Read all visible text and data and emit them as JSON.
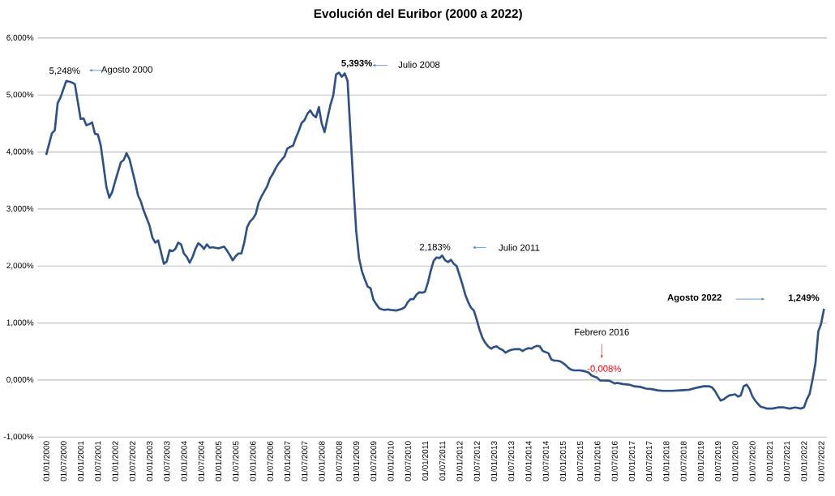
{
  "chart_data": {
    "type": "line",
    "title": "Evolución del Euribor (2000 a 2022)",
    "xlim": [
      "1999-10",
      "2022-09"
    ],
    "ylim": [
      -1,
      6
    ],
    "xticks": [
      {
        "value": "2000-01",
        "label": "01/01/2000"
      },
      {
        "value": "2000-07",
        "label": "01/07/2000"
      },
      {
        "value": "2001-01",
        "label": "01/01/2001"
      },
      {
        "value": "2001-07",
        "label": "01/07/2001"
      },
      {
        "value": "2002-01",
        "label": "01/01/2002"
      },
      {
        "value": "2002-07",
        "label": "01/07/2002"
      },
      {
        "value": "2003-01",
        "label": "01/01/2003"
      },
      {
        "value": "2003-07",
        "label": "01/07/2003"
      },
      {
        "value": "2004-01",
        "label": "01/01/2004"
      },
      {
        "value": "2004-07",
        "label": "01/07/2004"
      },
      {
        "value": "2005-01",
        "label": "01/01/2005"
      },
      {
        "value": "2005-07",
        "label": "01/07/2005"
      },
      {
        "value": "2006-01",
        "label": "01/01/2006"
      },
      {
        "value": "2006-07",
        "label": "01/07/2006"
      },
      {
        "value": "2007-01",
        "label": "01/01/2007"
      },
      {
        "value": "2007-07",
        "label": "01/07/2007"
      },
      {
        "value": "2008-01",
        "label": "01/01/2008"
      },
      {
        "value": "2008-07",
        "label": "01/07/2008"
      },
      {
        "value": "2009-01",
        "label": "01/01/2009"
      },
      {
        "value": "2009-07",
        "label": "01/07/2009"
      },
      {
        "value": "2010-01",
        "label": "01/01/2010"
      },
      {
        "value": "2010-07",
        "label": "01/07/2010"
      },
      {
        "value": "2011-01",
        "label": "01/01/2011"
      },
      {
        "value": "2011-07",
        "label": "01/07/2011"
      },
      {
        "value": "2012-01",
        "label": "01/01/2012"
      },
      {
        "value": "2012-07",
        "label": "01/07/2012"
      },
      {
        "value": "2013-01",
        "label": "01/01/2013"
      },
      {
        "value": "2013-07",
        "label": "01/07/2013"
      },
      {
        "value": "2014-01",
        "label": "01/01/2014"
      },
      {
        "value": "2014-07",
        "label": "01/07/2014"
      },
      {
        "value": "2015-01",
        "label": "01/01/2015"
      },
      {
        "value": "2015-07",
        "label": "01/07/2015"
      },
      {
        "value": "2016-01",
        "label": "01/01/2016"
      },
      {
        "value": "2016-07",
        "label": "01/07/2016"
      },
      {
        "value": "2017-01",
        "label": "01/01/2017"
      },
      {
        "value": "2017-07",
        "label": "01/07/2017"
      },
      {
        "value": "2018-01",
        "label": "01/01/2018"
      },
      {
        "value": "2018-07",
        "label": "01/07/2018"
      },
      {
        "value": "2019-01",
        "label": "01/01/2019"
      },
      {
        "value": "2019-07",
        "label": "01/07/2019"
      },
      {
        "value": "2020-01",
        "label": "01/01/2020"
      },
      {
        "value": "2020-07",
        "label": "01/07/2020"
      },
      {
        "value": "2021-01",
        "label": "01/01/2021"
      },
      {
        "value": "2021-07",
        "label": "01/07/2021"
      },
      {
        "value": "2022-01",
        "label": "01/01/2022"
      },
      {
        "value": "2022-07",
        "label": "01/07/2022"
      }
    ],
    "yticks": [
      {
        "value": -1,
        "label": "-1,000%"
      },
      {
        "value": 0,
        "label": "0,000%"
      },
      {
        "value": 1,
        "label": "1,000%"
      },
      {
        "value": 2,
        "label": "2,000%"
      },
      {
        "value": 3,
        "label": "3,000%"
      },
      {
        "value": 4,
        "label": "4,000%"
      },
      {
        "value": 5,
        "label": "5,000%"
      },
      {
        "value": 6,
        "label": "6,000%"
      }
    ],
    "grid": "y",
    "series": [
      {
        "color": "#2e5288",
        "x": [
          "2000-01",
          "2000-03",
          "2000-04",
          "2000-05",
          "2000-06",
          "2000-08",
          "2000-10",
          "2000-11",
          "2001-01",
          "2001-02",
          "2001-03",
          "2001-04",
          "2001-05",
          "2001-06",
          "2001-07",
          "2001-08",
          "2001-10",
          "2001-11",
          "2001-12",
          "2002-01",
          "2002-03",
          "2002-04",
          "2002-05",
          "2002-06",
          "2002-08",
          "2002-09",
          "2002-10",
          "2002-11",
          "2003-01",
          "2003-02",
          "2003-03",
          "2003-04",
          "2003-06",
          "2003-07",
          "2003-08",
          "2003-09",
          "2003-10",
          "2003-11",
          "2003-12",
          "2004-01",
          "2004-02",
          "2004-03",
          "2004-04",
          "2004-05",
          "2004-06",
          "2004-07",
          "2004-08",
          "2004-09",
          "2004-10",
          "2004-11",
          "2005-01",
          "2005-03",
          "2005-04",
          "2005-05",
          "2005-06",
          "2005-07",
          "2005-08",
          "2005-09",
          "2005-10",
          "2005-11",
          "2005-12",
          "2006-01",
          "2006-02",
          "2006-03",
          "2006-04",
          "2006-05",
          "2006-06",
          "2006-07",
          "2006-08",
          "2006-09",
          "2006-10",
          "2006-11",
          "2006-12",
          "2007-01",
          "2007-02",
          "2007-03",
          "2007-04",
          "2007-05",
          "2007-06",
          "2007-07",
          "2007-08",
          "2007-09",
          "2007-10",
          "2007-11",
          "2007-12",
          "2008-01",
          "2008-02",
          "2008-03",
          "2008-04",
          "2008-05",
          "2008-06",
          "2008-07",
          "2008-08",
          "2008-09",
          "2008-10",
          "2008-11",
          "2008-12",
          "2009-01",
          "2009-02",
          "2009-03",
          "2009-04",
          "2009-05",
          "2009-06",
          "2009-07",
          "2009-08",
          "2009-09",
          "2009-10",
          "2009-11",
          "2009-12",
          "2010-01",
          "2010-03",
          "2010-05",
          "2010-06",
          "2010-07",
          "2010-08",
          "2010-09",
          "2010-10",
          "2010-11",
          "2010-12",
          "2011-01",
          "2011-02",
          "2011-03",
          "2011-04",
          "2011-05",
          "2011-06",
          "2011-07",
          "2011-08",
          "2011-09",
          "2011-10",
          "2011-11",
          "2011-12",
          "2012-01",
          "2012-02",
          "2012-03",
          "2012-04",
          "2012-05",
          "2012-06",
          "2012-07",
          "2012-08",
          "2012-09",
          "2012-10",
          "2012-11",
          "2012-12",
          "2013-01",
          "2013-02",
          "2013-03",
          "2013-04",
          "2013-05",
          "2013-06",
          "2013-07",
          "2013-08",
          "2013-09",
          "2013-10",
          "2013-11",
          "2013-12",
          "2014-01",
          "2014-02",
          "2014-03",
          "2014-04",
          "2014-05",
          "2014-06",
          "2014-07",
          "2014-08",
          "2014-09",
          "2014-10",
          "2014-11",
          "2014-12",
          "2015-01",
          "2015-02",
          "2015-03",
          "2015-04",
          "2015-05",
          "2015-07",
          "2015-08",
          "2015-09",
          "2015-10",
          "2015-11",
          "2015-12",
          "2016-01",
          "2016-02",
          "2016-05",
          "2016-06",
          "2016-07",
          "2016-08",
          "2016-10",
          "2016-12",
          "2017-02",
          "2017-04",
          "2017-06",
          "2017-08",
          "2017-10",
          "2017-12",
          "2018-03",
          "2018-06",
          "2018-09",
          "2018-12",
          "2019-02",
          "2019-03",
          "2019-04",
          "2019-05",
          "2019-06",
          "2019-07",
          "2019-08",
          "2019-09",
          "2019-10",
          "2019-11",
          "2019-12",
          "2020-01",
          "2020-02",
          "2020-03",
          "2020-04",
          "2020-05",
          "2020-06",
          "2020-07",
          "2020-08",
          "2020-09",
          "2020-10",
          "2020-11",
          "2020-12",
          "2021-02",
          "2021-04",
          "2021-06",
          "2021-08",
          "2021-10",
          "2021-12",
          "2022-01",
          "2022-02",
          "2022-03",
          "2022-04",
          "2022-05",
          "2022-06",
          "2022-07",
          "2022-08"
        ],
        "values": [
          3.95,
          4.33,
          4.38,
          4.86,
          4.96,
          5.248,
          5.22,
          5.19,
          4.58,
          4.59,
          4.47,
          4.49,
          4.52,
          4.32,
          4.31,
          4.12,
          3.38,
          3.2,
          3.3,
          3.48,
          3.82,
          3.86,
          3.98,
          3.88,
          3.47,
          3.24,
          3.13,
          2.97,
          2.71,
          2.5,
          2.41,
          2.45,
          2.04,
          2.08,
          2.28,
          2.26,
          2.3,
          2.41,
          2.38,
          2.22,
          2.16,
          2.06,
          2.16,
          2.3,
          2.4,
          2.36,
          2.3,
          2.38,
          2.32,
          2.33,
          2.31,
          2.34,
          2.27,
          2.19,
          2.1,
          2.17,
          2.22,
          2.22,
          2.41,
          2.68,
          2.78,
          2.83,
          2.91,
          3.11,
          3.22,
          3.31,
          3.4,
          3.54,
          3.62,
          3.72,
          3.8,
          3.86,
          3.92,
          4.06,
          4.09,
          4.11,
          4.25,
          4.37,
          4.51,
          4.56,
          4.67,
          4.73,
          4.65,
          4.61,
          4.79,
          4.5,
          4.35,
          4.59,
          4.82,
          4.99,
          5.36,
          5.393,
          5.32,
          5.38,
          5.25,
          4.35,
          3.45,
          2.62,
          2.14,
          1.91,
          1.77,
          1.64,
          1.61,
          1.41,
          1.33,
          1.26,
          1.24,
          1.23,
          1.24,
          1.23,
          1.22,
          1.25,
          1.28,
          1.37,
          1.42,
          1.42,
          1.5,
          1.54,
          1.53,
          1.55,
          1.71,
          1.92,
          2.09,
          2.15,
          2.14,
          2.183,
          2.1,
          2.07,
          2.11,
          2.04,
          2.0,
          1.84,
          1.68,
          1.5,
          1.37,
          1.27,
          1.22,
          1.06,
          0.88,
          0.74,
          0.65,
          0.59,
          0.55,
          0.58,
          0.59,
          0.55,
          0.53,
          0.48,
          0.51,
          0.53,
          0.54,
          0.54,
          0.54,
          0.51,
          0.54,
          0.56,
          0.55,
          0.58,
          0.6,
          0.59,
          0.51,
          0.49,
          0.47,
          0.36,
          0.34,
          0.34,
          0.33,
          0.3,
          0.26,
          0.21,
          0.18,
          0.17,
          0.17,
          0.16,
          0.15,
          0.13,
          0.08,
          0.06,
          0.04,
          -0.008,
          -0.01,
          -0.03,
          -0.06,
          -0.05,
          -0.07,
          -0.08,
          -0.11,
          -0.12,
          -0.15,
          -0.16,
          -0.18,
          -0.19,
          -0.19,
          -0.18,
          -0.17,
          -0.13,
          -0.11,
          -0.11,
          -0.11,
          -0.13,
          -0.19,
          -0.28,
          -0.36,
          -0.34,
          -0.3,
          -0.27,
          -0.26,
          -0.25,
          -0.29,
          -0.27,
          -0.11,
          -0.08,
          -0.15,
          -0.28,
          -0.36,
          -0.42,
          -0.47,
          -0.48,
          -0.5,
          -0.5,
          -0.48,
          -0.48,
          -0.5,
          -0.48,
          -0.5,
          -0.48,
          -0.34,
          -0.24,
          0.01,
          0.29,
          0.85,
          0.99,
          1.249
        ]
      }
    ],
    "annotations": [
      {
        "text": "5,248%",
        "x": "2000-08",
        "y": 5.248
      },
      "Agosto 2000",
      {
        "text": "5,393%",
        "x": "2008-07",
        "y": 5.393
      },
      "Julio 2008",
      {
        "text": "2,183%",
        "x": "2011-07",
        "y": 2.183
      },
      "Julio 2011",
      "Febrero 2016",
      {
        "text": "-0,008%",
        "x": "2016-02",
        "y": -0.008
      },
      "Agosto 2022",
      {
        "text": "1,249%",
        "x": "2022-08",
        "y": 1.249
      }
    ]
  }
}
